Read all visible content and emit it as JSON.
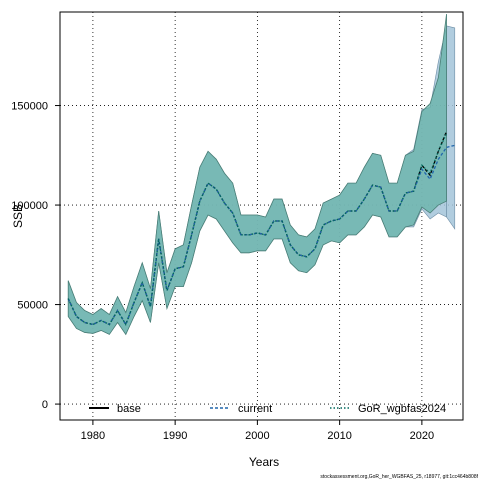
{
  "chart_data": {
    "type": "area",
    "xlabel": "Years",
    "ylabel": "SSB",
    "xlim": [
      1976,
      2025
    ],
    "ylim": [
      -8000,
      197000
    ],
    "x_ticks": [
      1980,
      1990,
      2000,
      2010,
      2020
    ],
    "y_ticks": [
      0,
      50000,
      100000,
      150000
    ],
    "grid": true,
    "legend_position": "bottom",
    "footnote": "stockassessment.org,GoR_her_WGBFAS_25, r18977, git:1cc464b808f",
    "x": [
      1977,
      1978,
      1979,
      1980,
      1981,
      1982,
      1983,
      1984,
      1985,
      1986,
      1987,
      1988,
      1989,
      1990,
      1991,
      1992,
      1993,
      1994,
      1995,
      1996,
      1997,
      1998,
      1999,
      2000,
      2001,
      2002,
      2003,
      2004,
      2005,
      2006,
      2007,
      2008,
      2009,
      2010,
      2011,
      2012,
      2013,
      2014,
      2015,
      2016,
      2017,
      2018,
      2019,
      2020,
      2021,
      2022,
      2023
    ],
    "series": [
      {
        "name": "base",
        "color": "#000000",
        "line_style": "solid",
        "values": [
          53000,
          44000,
          41000,
          40000,
          42000,
          40000,
          47000,
          40000,
          51000,
          61000,
          49000,
          83000,
          57000,
          68000,
          69000,
          85000,
          102000,
          111000,
          108000,
          101000,
          96000,
          85000,
          85000,
          86000,
          85000,
          92000,
          92000,
          80000,
          75000,
          74000,
          78000,
          90000,
          92000,
          93000,
          97000,
          97000,
          103000,
          110000,
          109000,
          97000,
          97000,
          106000,
          107000,
          120000,
          115000,
          127000,
          137000
        ]
      },
      {
        "name": "current",
        "color": "#2166ac",
        "line_style": "dashed",
        "band_color": "#a3c4d9",
        "values": [
          53000,
          44000,
          41000,
          40000,
          42000,
          40000,
          47000,
          40000,
          51000,
          61000,
          49000,
          83000,
          57000,
          68000,
          69000,
          85000,
          102000,
          111000,
          108000,
          101000,
          96000,
          85000,
          85000,
          86000,
          85000,
          92000,
          92000,
          80000,
          75000,
          74000,
          78000,
          90000,
          92000,
          93000,
          97000,
          97000,
          103000,
          110000,
          109000,
          97000,
          97000,
          106000,
          107000,
          118000,
          113000,
          123000,
          129000
        ],
        "lower": [
          44000,
          38000,
          36000,
          35500,
          37000,
          35000,
          41000,
          35000,
          44000,
          52000,
          41000,
          71000,
          48000,
          59000,
          59000,
          71000,
          87000,
          95000,
          93000,
          87000,
          81000,
          76000,
          76000,
          77000,
          77000,
          83000,
          83000,
          71000,
          67000,
          66000,
          70000,
          80000,
          82000,
          81000,
          85000,
          85000,
          89000,
          95000,
          94000,
          84000,
          84000,
          89000,
          89000,
          98000,
          93000,
          96000,
          94000
        ],
        "upper": [
          62000,
          51000,
          47000,
          45000,
          48000,
          45000,
          54000,
          46000,
          59000,
          71000,
          58000,
          97000,
          66000,
          78000,
          80000,
          100000,
          119000,
          127000,
          123000,
          116000,
          111000,
          95000,
          95000,
          95000,
          94000,
          103000,
          103000,
          90000,
          85000,
          84000,
          88000,
          101000,
          103000,
          105000,
          111000,
          111000,
          119000,
          126000,
          125000,
          111000,
          111000,
          125000,
          128000,
          148000,
          149000,
          172000,
          190000
        ]
      },
      {
        "name": "GoR_wgbfas2024",
        "color": "#00695c",
        "line_style": "dotted",
        "band_color": "#66b2a7",
        "values": [
          53000,
          44000,
          41000,
          40000,
          42000,
          40000,
          47000,
          40000,
          51000,
          61000,
          49000,
          83000,
          57000,
          68000,
          69000,
          85000,
          102000,
          111000,
          108000,
          101000,
          96000,
          85000,
          85000,
          86000,
          85000,
          92000,
          92000,
          80000,
          75000,
          74000,
          78000,
          90000,
          92000,
          93000,
          97000,
          97000,
          103000,
          110000,
          109000,
          97000,
          97000,
          106000,
          107000,
          120000,
          116000,
          127000,
          136000
        ],
        "lower": [
          44000,
          38000,
          36000,
          35500,
          37000,
          35000,
          41000,
          35000,
          44000,
          52000,
          41000,
          71000,
          48000,
          59000,
          59000,
          71000,
          87000,
          95000,
          93000,
          87000,
          81000,
          76000,
          76000,
          77000,
          77000,
          83000,
          83000,
          71000,
          67000,
          66000,
          70000,
          80000,
          82000,
          81000,
          85000,
          85000,
          89000,
          95000,
          94000,
          84000,
          84000,
          89000,
          90000,
          99000,
          96000,
          100000,
          102000
        ],
        "upper": [
          62000,
          51000,
          47000,
          45000,
          48000,
          45000,
          54000,
          46000,
          59000,
          71000,
          58000,
          97000,
          66000,
          78000,
          80000,
          100000,
          119000,
          127000,
          123000,
          116000,
          111000,
          95000,
          95000,
          95000,
          94000,
          103000,
          103000,
          90000,
          85000,
          84000,
          88000,
          101000,
          103000,
          105000,
          111000,
          111000,
          119000,
          126000,
          125000,
          111000,
          111000,
          125000,
          127000,
          147000,
          151000,
          164000,
          196000
        ]
      }
    ],
    "extra_series": {
      "current": {
        "x": [
          2023,
          2024
        ],
        "values": [
          129000,
          130000
        ],
        "lower": [
          94000,
          88000
        ],
        "upper": [
          190000,
          189000
        ]
      }
    }
  }
}
